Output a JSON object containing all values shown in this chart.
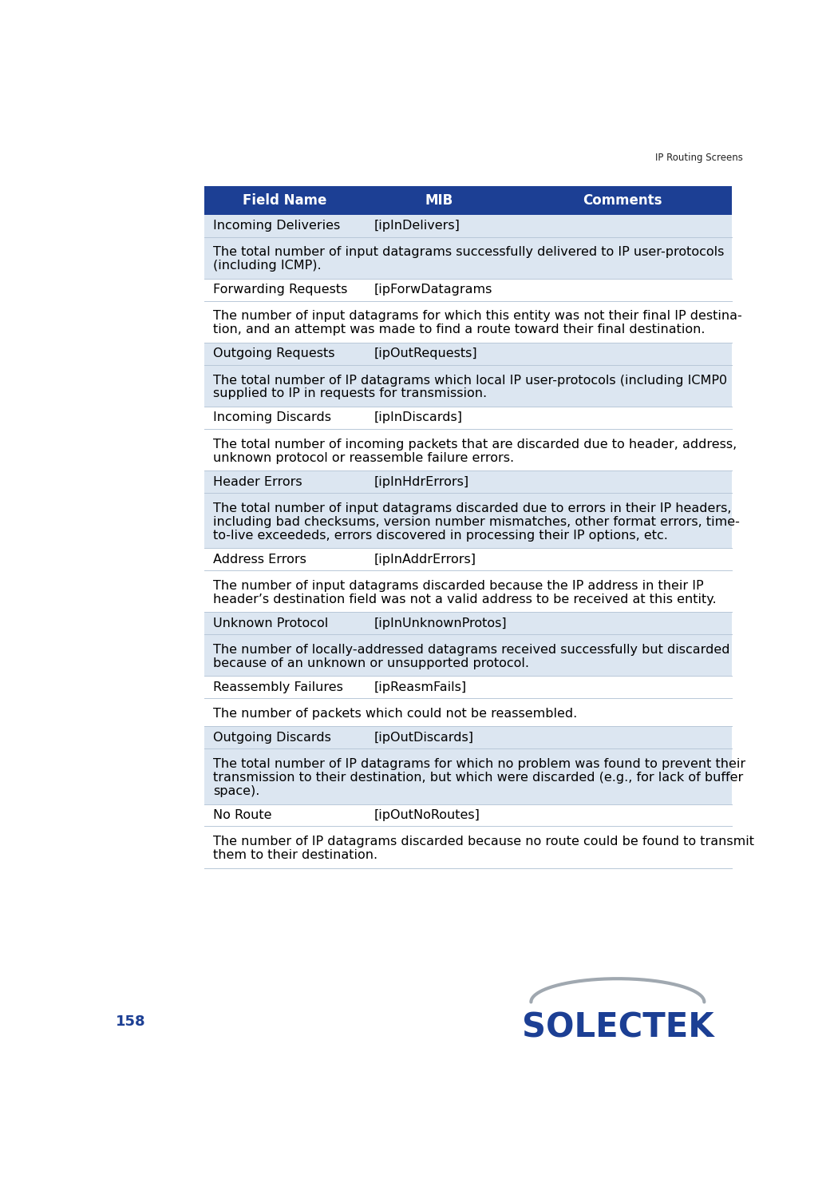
{
  "page_title": "IP Routing Screens",
  "page_number": "158",
  "header_bg": "#1c3f94",
  "header_text_color": "#ffffff",
  "row_bg_light": "#dce6f1",
  "row_bg_white": "#ffffff",
  "body_text_color": "#000000",
  "header_cols": [
    "Field Name",
    "MIB",
    "Comments"
  ],
  "rows": [
    {
      "type": "data_row",
      "col1": "Incoming Deliveries",
      "col2": "[ipInDelivers]",
      "bg": "#dce6f1"
    },
    {
      "type": "desc_row",
      "lines": [
        "The total number of input datagrams successfully delivered to IP user-protocols",
        "(including ICMP)."
      ],
      "bg": "#dce6f1"
    },
    {
      "type": "data_row",
      "col1": "Forwarding Requests",
      "col2": "[ipForwDatagrams",
      "bg": "#ffffff"
    },
    {
      "type": "desc_row",
      "lines": [
        "The number of input datagrams for which this entity was not their final IP destina-",
        "tion, and an attempt was made to find a route toward their final destination."
      ],
      "bg": "#ffffff"
    },
    {
      "type": "data_row",
      "col1": "Outgoing Requests",
      "col2": "[ipOutRequests]",
      "bg": "#dce6f1"
    },
    {
      "type": "desc_row",
      "lines": [
        "The total number of IP datagrams which local IP user-protocols (including ICMP0",
        "supplied to IP in requests for transmission."
      ],
      "bg": "#dce6f1"
    },
    {
      "type": "data_row",
      "col1": "Incoming Discards",
      "col2": "[ipInDiscards]",
      "bg": "#ffffff"
    },
    {
      "type": "desc_row",
      "lines": [
        "The total number of incoming packets that are discarded due to header, address,",
        "unknown protocol or reassemble failure errors."
      ],
      "bg": "#ffffff"
    },
    {
      "type": "data_row",
      "col1": "Header Errors",
      "col2": "[ipInHdrErrors]",
      "bg": "#dce6f1"
    },
    {
      "type": "desc_row",
      "lines": [
        "The total number of input datagrams discarded due to errors in their IP headers,",
        "including bad checksums, version number mismatches, other format errors, time-",
        "to-live exceededs, errors discovered in processing their IP options, etc."
      ],
      "bg": "#dce6f1"
    },
    {
      "type": "data_row",
      "col1": "Address Errors",
      "col2": "[ipInAddrErrors]",
      "bg": "#ffffff"
    },
    {
      "type": "desc_row",
      "lines": [
        "The number of input datagrams discarded because the IP address in their IP",
        "header’s destination field was not a valid address to be received at this entity."
      ],
      "bg": "#ffffff"
    },
    {
      "type": "data_row",
      "col1": "Unknown Protocol",
      "col2": "[ipInUnknownProtos]",
      "bg": "#dce6f1"
    },
    {
      "type": "desc_row",
      "lines": [
        "The number of locally-addressed datagrams received successfully but discarded",
        "because of an unknown or unsupported protocol."
      ],
      "bg": "#dce6f1"
    },
    {
      "type": "data_row",
      "col1": "Reassembly Failures",
      "col2": "[ipReasmFails]",
      "bg": "#ffffff"
    },
    {
      "type": "desc_row",
      "lines": [
        "The number of packets which could not be reassembled."
      ],
      "bg": "#ffffff"
    },
    {
      "type": "data_row",
      "col1": "Outgoing Discards",
      "col2": "[ipOutDiscards]",
      "bg": "#dce6f1"
    },
    {
      "type": "desc_row",
      "lines": [
        "The total number of IP datagrams for which no problem was found to prevent their",
        "transmission to their destination, but which were discarded (e.g., for lack of buffer",
        "space)."
      ],
      "bg": "#dce6f1"
    },
    {
      "type": "data_row",
      "col1": "No Route",
      "col2": "[ipOutNoRoutes]",
      "bg": "#ffffff"
    },
    {
      "type": "desc_row",
      "lines": [
        "The number of IP datagrams discarded because no route could be found to transmit",
        "them to their destination."
      ],
      "bg": "#ffffff"
    }
  ],
  "solectek_color": "#1c3f94",
  "solectek_text": "SOLECTEK"
}
